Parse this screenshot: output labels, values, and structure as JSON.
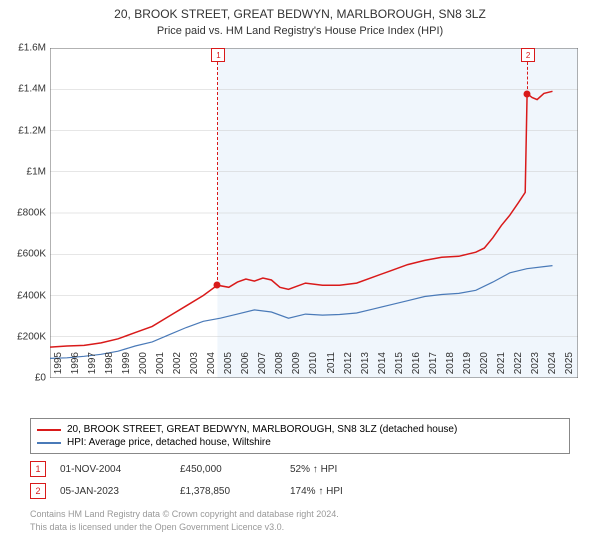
{
  "title_line1": "20, BROOK STREET, GREAT BEDWYN, MARLBOROUGH, SN8 3LZ",
  "title_line2": "Price paid vs. HM Land Registry's House Price Index (HPI)",
  "chart": {
    "type": "line",
    "background_color": "#ffffff",
    "plot_background_left": "#ffffff",
    "plot_background_right": "#f0f6fc",
    "grid_color": "#cccccc",
    "axis_color": "#666666",
    "x_min": 1995,
    "x_max": 2026,
    "x_tick_step": 1,
    "x_ticks": [
      1995,
      1996,
      1997,
      1998,
      1999,
      2000,
      2001,
      2002,
      2003,
      2004,
      2005,
      2006,
      2007,
      2008,
      2009,
      2010,
      2011,
      2012,
      2013,
      2014,
      2015,
      2016,
      2017,
      2018,
      2019,
      2020,
      2021,
      2022,
      2023,
      2024,
      2025
    ],
    "y_min": 0,
    "y_max": 1600000,
    "y_tick_step": 200000,
    "y_tick_labels": [
      "£0",
      "£200K",
      "£400K",
      "£600K",
      "£800K",
      "£1M",
      "£1.2M",
      "£1.4M",
      "£1.6M"
    ],
    "label_fontsize": 10,
    "series": [
      {
        "name": "price_paid",
        "color": "#d91a1a",
        "width": 1.5,
        "points": [
          [
            1995,
            150000
          ],
          [
            1996,
            155000
          ],
          [
            1997,
            158000
          ],
          [
            1998,
            170000
          ],
          [
            1999,
            190000
          ],
          [
            2000,
            220000
          ],
          [
            2001,
            250000
          ],
          [
            2002,
            300000
          ],
          [
            2003,
            350000
          ],
          [
            2004,
            400000
          ],
          [
            2004.83,
            450000
          ],
          [
            2005.5,
            440000
          ],
          [
            2006,
            465000
          ],
          [
            2006.5,
            480000
          ],
          [
            2007,
            470000
          ],
          [
            2007.5,
            485000
          ],
          [
            2008,
            475000
          ],
          [
            2008.5,
            440000
          ],
          [
            2009,
            430000
          ],
          [
            2009.5,
            445000
          ],
          [
            2010,
            460000
          ],
          [
            2011,
            450000
          ],
          [
            2012,
            450000
          ],
          [
            2013,
            460000
          ],
          [
            2014,
            490000
          ],
          [
            2015,
            520000
          ],
          [
            2016,
            550000
          ],
          [
            2017,
            570000
          ],
          [
            2018,
            585000
          ],
          [
            2019,
            590000
          ],
          [
            2020,
            610000
          ],
          [
            2020.5,
            630000
          ],
          [
            2021,
            680000
          ],
          [
            2021.5,
            740000
          ],
          [
            2022,
            790000
          ],
          [
            2022.5,
            850000
          ],
          [
            2022.9,
            900000
          ],
          [
            2023.01,
            1378850
          ],
          [
            2023.3,
            1360000
          ],
          [
            2023.6,
            1350000
          ],
          [
            2024,
            1380000
          ],
          [
            2024.5,
            1390000
          ]
        ]
      },
      {
        "name": "hpi",
        "color": "#4a7ab8",
        "width": 1.2,
        "points": [
          [
            1995,
            95000
          ],
          [
            1996,
            98000
          ],
          [
            1997,
            105000
          ],
          [
            1998,
            115000
          ],
          [
            1999,
            130000
          ],
          [
            2000,
            155000
          ],
          [
            2001,
            175000
          ],
          [
            2002,
            210000
          ],
          [
            2003,
            245000
          ],
          [
            2004,
            275000
          ],
          [
            2005,
            290000
          ],
          [
            2006,
            310000
          ],
          [
            2007,
            330000
          ],
          [
            2008,
            320000
          ],
          [
            2009,
            290000
          ],
          [
            2010,
            310000
          ],
          [
            2011,
            305000
          ],
          [
            2012,
            308000
          ],
          [
            2013,
            315000
          ],
          [
            2014,
            335000
          ],
          [
            2015,
            355000
          ],
          [
            2016,
            375000
          ],
          [
            2017,
            395000
          ],
          [
            2018,
            405000
          ],
          [
            2019,
            410000
          ],
          [
            2020,
            425000
          ],
          [
            2021,
            465000
          ],
          [
            2022,
            510000
          ],
          [
            2023,
            530000
          ],
          [
            2024,
            540000
          ],
          [
            2024.5,
            545000
          ]
        ]
      }
    ],
    "shade_split_x": 2004.83,
    "markers": [
      {
        "id": "1",
        "x": 2004.83,
        "y": 450000,
        "label_y_top": true
      },
      {
        "id": "2",
        "x": 2023.01,
        "y": 1378850,
        "label_y_top": true
      }
    ]
  },
  "legend": {
    "items": [
      {
        "color": "#d91a1a",
        "label": "20, BROOK STREET, GREAT BEDWYN, MARLBOROUGH, SN8 3LZ (detached house)"
      },
      {
        "color": "#4a7ab8",
        "label": "HPI: Average price, detached house, Wiltshire"
      }
    ]
  },
  "marker_table": {
    "rows": [
      {
        "id": "1",
        "date": "01-NOV-2004",
        "price": "£450,000",
        "pct": "52% ↑ HPI",
        "border": "#d91a1a"
      },
      {
        "id": "2",
        "date": "05-JAN-2023",
        "price": "£1,378,850",
        "pct": "174% ↑ HPI",
        "border": "#d91a1a"
      }
    ]
  },
  "footer": {
    "line1": "Contains HM Land Registry data © Crown copyright and database right 2024.",
    "line2": "This data is licensed under the Open Government Licence v3.0."
  }
}
